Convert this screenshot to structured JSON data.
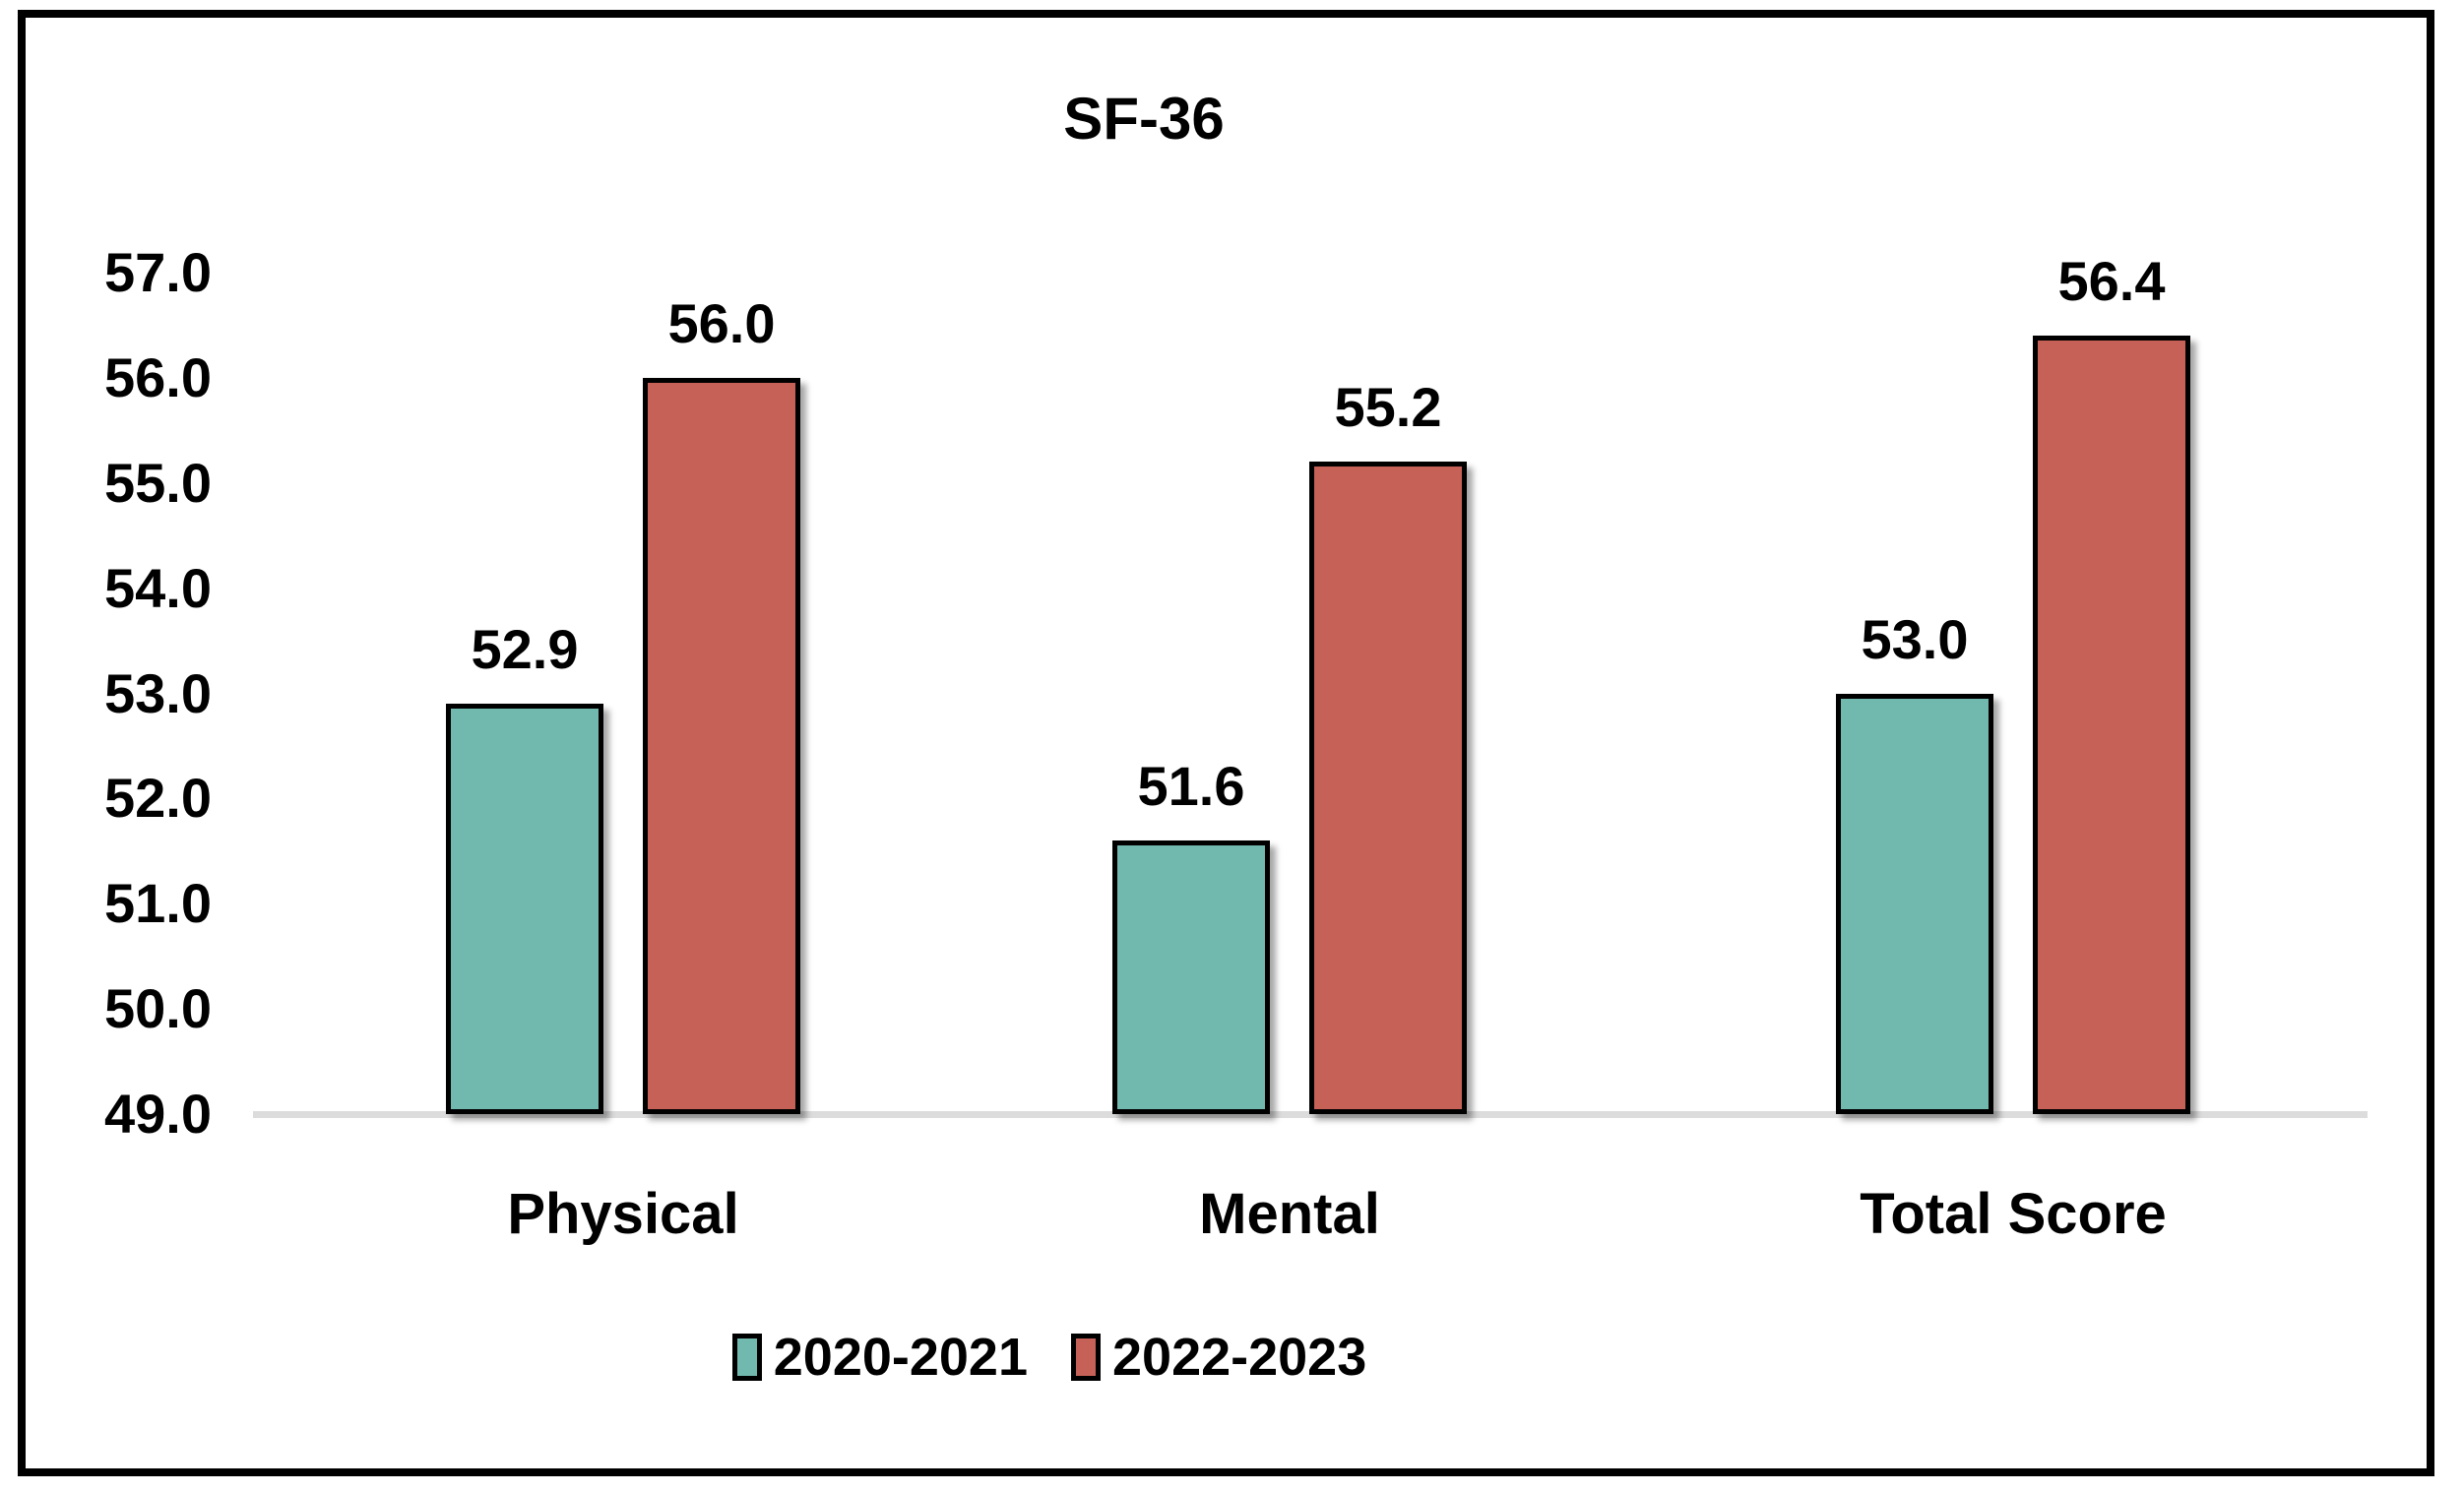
{
  "chart_data": {
    "type": "bar",
    "title": "SF-36",
    "categories": [
      "Physical",
      "Mental",
      "Total Score"
    ],
    "series": [
      {
        "name": "2020-2021",
        "color": "#71B8AF",
        "values": [
          52.9,
          51.6,
          53.0
        ],
        "labels": [
          "52.9",
          "51.6",
          "53.0"
        ]
      },
      {
        "name": "2022-2023",
        "color": "#C66157",
        "values": [
          56.0,
          55.2,
          56.4
        ],
        "labels": [
          "56.0",
          "55.2",
          "56.4"
        ]
      }
    ],
    "ylim": [
      49.0,
      57.0
    ],
    "ytick_labels": [
      "57.0",
      "56.0",
      "55.0",
      "54.0",
      "53.0",
      "52.0",
      "51.0",
      "50.0",
      "49.0"
    ],
    "yticks": [
      57.0,
      56.0,
      55.0,
      54.0,
      53.0,
      52.0,
      51.0,
      50.0,
      49.0
    ],
    "grid": false,
    "legend_position": "bottom",
    "colors": {
      "bar_border": "#000000",
      "baseline": "#DCDCDC",
      "frame_border": "#000000",
      "background": "#FFFFFF",
      "text": "#000000"
    }
  }
}
